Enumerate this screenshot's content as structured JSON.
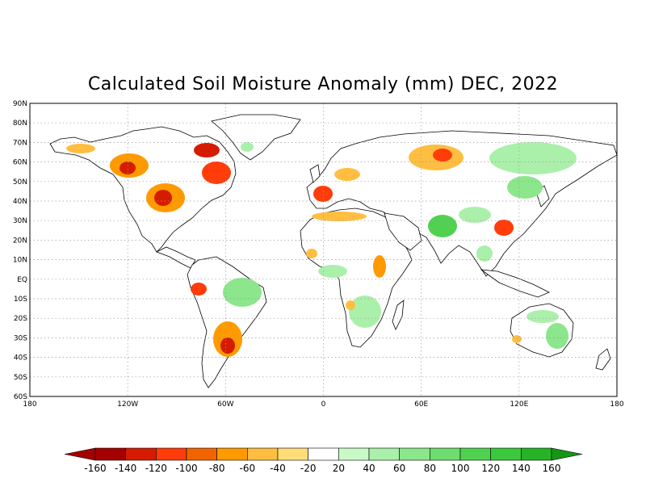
{
  "title": "Calculated Soil Moisture Anomaly (mm) DEC, 2022",
  "lat_labels": [
    "90N",
    "80N",
    "70N",
    "60N",
    "50N",
    "40N",
    "30N",
    "20N",
    "10N",
    "EQ",
    "10S",
    "20S",
    "30S",
    "40S",
    "50S",
    "60S"
  ],
  "lon_labels": [
    "180",
    "120W",
    "60W",
    "0",
    "60E",
    "120E",
    "180"
  ],
  "colorbar": {
    "ticks": [
      "-160",
      "-140",
      "-120",
      "-100",
      "-80",
      "-60",
      "-40",
      "-20",
      "20",
      "40",
      "60",
      "80",
      "100",
      "120",
      "140",
      "160"
    ],
    "colors": [
      "#a50000",
      "#d61c00",
      "#ff3c0a",
      "#f26400",
      "#ff9a00",
      "#ffbe40",
      "#ffdc78",
      "#ffffff",
      "#c8fac8",
      "#aaf0aa",
      "#8ce68c",
      "#6edc6e",
      "#50d250",
      "#3cc83c",
      "#26b426"
    ],
    "low_arrow_color": "#a50000",
    "high_arrow_color": "#169616"
  },
  "colors": {
    "land": "#ffffff",
    "coast": "#000000",
    "grid": "#9a9a9a",
    "dry_strong": "#d61c00",
    "dry": "#ff9a00",
    "dry_light": "#ffdc78",
    "wet_light": "#c8fac8",
    "wet": "#8ce68c",
    "wet_strong": "#3cc83c"
  }
}
